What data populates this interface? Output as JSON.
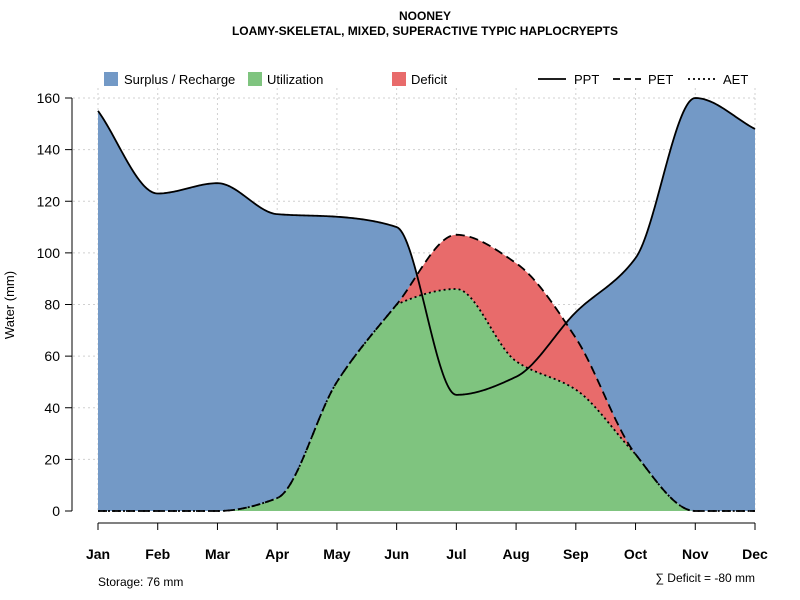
{
  "chart_data": {
    "type": "area",
    "title": "NOONEY",
    "subtitle": "LOAMY-SKELETAL, MIXED, SUPERACTIVE TYPIC HAPLOCRYEPTS",
    "xlabel": "",
    "ylabel": "Water (mm)",
    "ylim": [
      0,
      160
    ],
    "yticks": [
      0,
      20,
      40,
      60,
      80,
      100,
      120,
      140,
      160
    ],
    "grid": true,
    "categories": [
      "Jan",
      "Feb",
      "Mar",
      "Apr",
      "May",
      "Jun",
      "Jul",
      "Aug",
      "Sep",
      "Oct",
      "Nov",
      "Dec"
    ],
    "series": [
      {
        "name": "PPT",
        "style": "solid",
        "values": [
          155,
          123,
          127,
          115,
          114,
          110,
          45,
          52,
          77,
          98,
          160,
          148
        ]
      },
      {
        "name": "PET",
        "style": "dashed",
        "values": [
          0,
          0,
          0,
          5,
          50,
          80,
          107,
          96,
          67,
          22,
          0,
          0
        ]
      },
      {
        "name": "AET",
        "style": "dotted",
        "values": [
          0,
          0,
          0,
          5,
          50,
          80,
          86,
          58,
          47,
          22,
          0,
          0
        ]
      }
    ],
    "areas": [
      {
        "name": "Surplus / Recharge",
        "color": "#7399C6"
      },
      {
        "name": "Utilization",
        "color": "#7FC47F"
      },
      {
        "name": "Deficit",
        "color": "#E86B6B"
      }
    ],
    "legend_position": "top",
    "annotations": {
      "storage": "Storage: 76 mm",
      "deficit": "∑ Deficit = -80 mm"
    }
  }
}
